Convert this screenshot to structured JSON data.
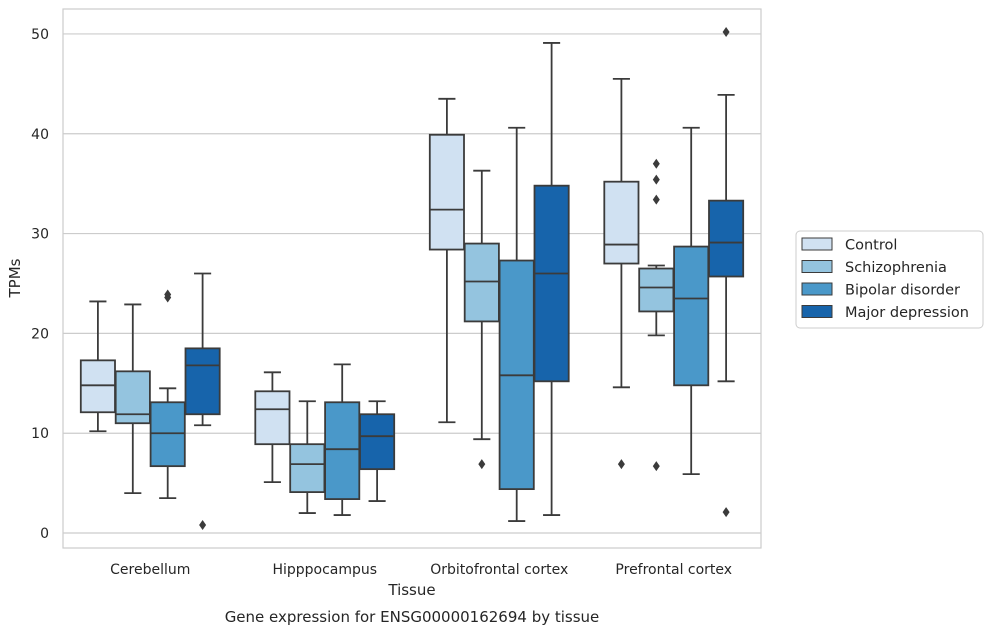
{
  "chart_data": {
    "type": "boxplot",
    "xlabel": "Tissue",
    "ylabel": "TPMs",
    "caption": "Gene expression for ENSG00000162694 by tissue",
    "ylim": [
      -1.5,
      52.5
    ],
    "yticks": [
      0,
      10,
      20,
      30,
      40,
      50
    ],
    "grid": "horizontal",
    "legend_position": "right",
    "categories": [
      "Cerebellum",
      "Hipppocampus",
      "Orbitofrontal cortex",
      "Prefrontal cortex"
    ],
    "series": [
      {
        "name": "Control",
        "color": "#d0e1f2",
        "boxes": [
          {
            "whislo": 10.2,
            "q1": 12.1,
            "med": 14.8,
            "q3": 17.3,
            "whishi": 23.2,
            "fliers": []
          },
          {
            "whislo": 5.1,
            "q1": 8.9,
            "med": 12.4,
            "q3": 14.2,
            "whishi": 16.1,
            "fliers": []
          },
          {
            "whislo": 11.1,
            "q1": 28.4,
            "med": 32.4,
            "q3": 39.9,
            "whishi": 43.5,
            "fliers": []
          },
          {
            "whislo": 14.6,
            "q1": 27.0,
            "med": 28.9,
            "q3": 35.2,
            "whishi": 45.5,
            "fliers": [
              6.9
            ]
          }
        ]
      },
      {
        "name": "Schizophrenia",
        "color": "#94c4df",
        "boxes": [
          {
            "whislo": 4.0,
            "q1": 11.0,
            "med": 11.9,
            "q3": 16.2,
            "whishi": 22.9,
            "fliers": []
          },
          {
            "whislo": 2.0,
            "q1": 4.1,
            "med": 6.9,
            "q3": 8.9,
            "whishi": 13.2,
            "fliers": []
          },
          {
            "whislo": 9.4,
            "q1": 21.2,
            "med": 25.2,
            "q3": 29.0,
            "whishi": 36.3,
            "fliers": [
              6.9
            ]
          },
          {
            "whislo": 19.8,
            "q1": 22.2,
            "med": 24.6,
            "q3": 26.5,
            "whishi": 26.8,
            "fliers": [
              6.7,
              33.4,
              35.4,
              37.0
            ]
          }
        ]
      },
      {
        "name": "Bipolar disorder",
        "color": "#4a98c9",
        "boxes": [
          {
            "whislo": 3.5,
            "q1": 6.7,
            "med": 10.0,
            "q3": 13.1,
            "whishi": 14.5,
            "fliers": [
              23.6,
              23.9
            ]
          },
          {
            "whislo": 1.8,
            "q1": 3.4,
            "med": 8.4,
            "q3": 13.1,
            "whishi": 16.9,
            "fliers": []
          },
          {
            "whislo": 1.2,
            "q1": 4.4,
            "med": 15.8,
            "q3": 27.3,
            "whishi": 40.6,
            "fliers": []
          },
          {
            "whislo": 5.9,
            "q1": 14.8,
            "med": 23.5,
            "q3": 28.7,
            "whishi": 40.6,
            "fliers": []
          }
        ]
      },
      {
        "name": "Major depression",
        "color": "#1764ab",
        "boxes": [
          {
            "whislo": 10.8,
            "q1": 11.9,
            "med": 16.8,
            "q3": 18.5,
            "whishi": 26.0,
            "fliers": [
              0.8
            ]
          },
          {
            "whislo": 3.2,
            "q1": 6.4,
            "med": 9.7,
            "q3": 11.9,
            "whishi": 13.2,
            "fliers": []
          },
          {
            "whislo": 1.8,
            "q1": 15.2,
            "med": 26.0,
            "q3": 34.8,
            "whishi": 49.1,
            "fliers": []
          },
          {
            "whislo": 15.2,
            "q1": 25.7,
            "med": 29.1,
            "q3": 33.3,
            "whishi": 43.9,
            "fliers": [
              2.1,
              50.2
            ]
          }
        ]
      }
    ]
  }
}
